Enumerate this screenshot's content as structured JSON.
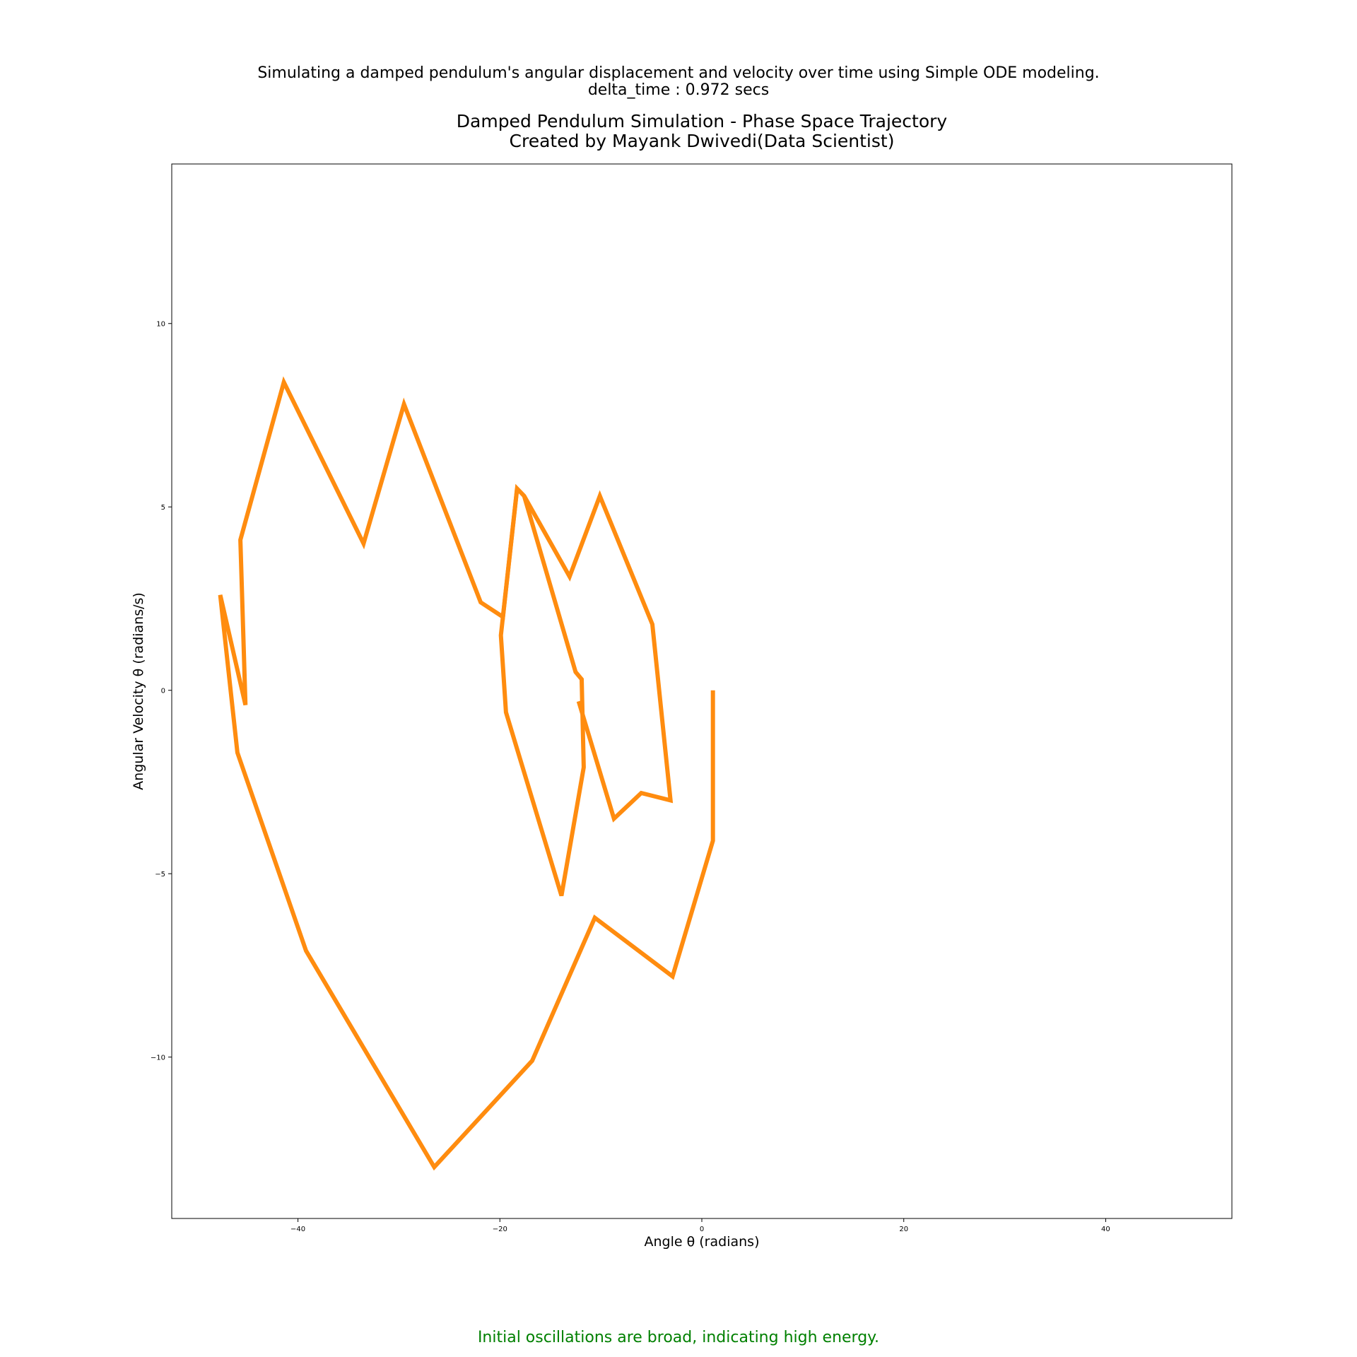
{
  "header": {
    "suptitle_line1": "Simulating a damped pendulum's angular displacement and velocity over time using Simple ODE modeling.",
    "suptitle_line2": "delta_time : 0.972 secs"
  },
  "footer": {
    "annotation": "Initial oscillations are broad, indicating high energy."
  },
  "colors": {
    "line": "#FF8C0F",
    "annotation": "#008000"
  },
  "chart_data": {
    "type": "line",
    "title_line1": "Damped Pendulum Simulation - Phase Space Trajectory",
    "title_line2": "Created by Mayank Dwivedi(Data Scientist)",
    "xlabel": "Angle θ (radians)",
    "ylabel": "Angular Velocity θ (radians/s)",
    "xlim": [
      -52.5,
      52.5
    ],
    "ylim": [
      -14.4,
      14.35
    ],
    "xticks": [
      -40,
      -20,
      0,
      20,
      40
    ],
    "xtick_labels": [
      "−40",
      "−20",
      "0",
      "20",
      "40"
    ],
    "yticks": [
      -10,
      -5,
      0,
      5,
      10
    ],
    "ytick_labels": [
      "−10",
      "−5",
      "0",
      "5",
      "10"
    ],
    "grid": false,
    "series": [
      {
        "x": [
          1.1,
          1.1,
          -2.9,
          -10.6,
          -16.8,
          -26.5,
          -39.2,
          -46.0,
          -47.7,
          -45.2,
          -45.7,
          -41.4,
          -33.5,
          -29.5,
          -21.9,
          -19.7,
          -18.3,
          -17.6,
          -13.1,
          -10.1,
          -4.9,
          -3.1,
          -6.0,
          -8.7,
          -12.2
        ],
        "y": [
          0.0,
          -4.1,
          -7.8,
          -6.2,
          -10.1,
          -13.0,
          -7.1,
          -1.7,
          2.6,
          -0.4,
          4.1,
          8.4,
          4.0,
          7.8,
          2.4,
          2.0,
          5.5,
          5.3,
          3.1,
          5.3,
          1.8,
          -3.0,
          -2.8,
          -3.5,
          -0.3
        ]
      },
      {
        "x": [
          -17.6,
          -12.5,
          -11.9,
          -11.7,
          -13.9,
          -19.4,
          -19.9,
          -18.3
        ],
        "y": [
          5.3,
          0.5,
          0.3,
          -2.1,
          -5.6,
          -0.6,
          1.5,
          5.5
        ]
      }
    ]
  }
}
